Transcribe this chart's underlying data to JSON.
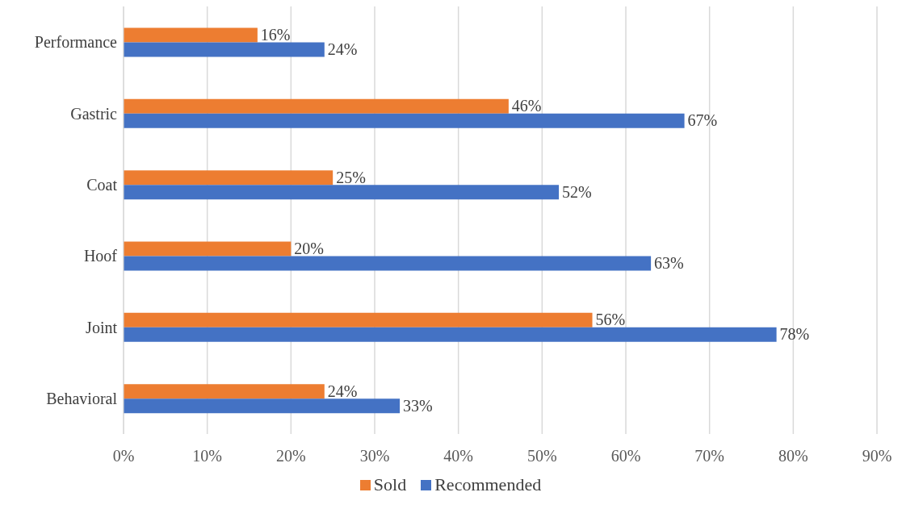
{
  "chart_data": {
    "type": "bar",
    "orientation": "horizontal",
    "categories": [
      "Performance",
      "Gastric",
      "Coat",
      "Hoof",
      "Joint",
      "Behavioral"
    ],
    "series": [
      {
        "name": "Sold",
        "color": "#ed7d31",
        "values": [
          16,
          46,
          25,
          20,
          56,
          24
        ],
        "value_labels": [
          "16%",
          "46%",
          "25%",
          "20%",
          "56%",
          "24%"
        ]
      },
      {
        "name": "Recommended",
        "color": "#4472c4",
        "values": [
          24,
          67,
          52,
          63,
          78,
          33
        ],
        "value_labels": [
          "24%",
          "67%",
          "52%",
          "63%",
          "78%",
          "33%"
        ]
      }
    ],
    "xlim": [
      0,
      90
    ],
    "xticks": [
      {
        "value": 0,
        "label": "0%"
      },
      {
        "value": 10,
        "label": "10%"
      },
      {
        "value": 20,
        "label": "20%"
      },
      {
        "value": 30,
        "label": "30%"
      },
      {
        "value": 40,
        "label": "40%"
      },
      {
        "value": 50,
        "label": "50%"
      },
      {
        "value": 60,
        "label": "60%"
      },
      {
        "value": 70,
        "label": "70%"
      },
      {
        "value": 80,
        "label": "80%"
      },
      {
        "value": 90,
        "label": "90%"
      }
    ],
    "grid": "x",
    "legend": "bottom"
  }
}
